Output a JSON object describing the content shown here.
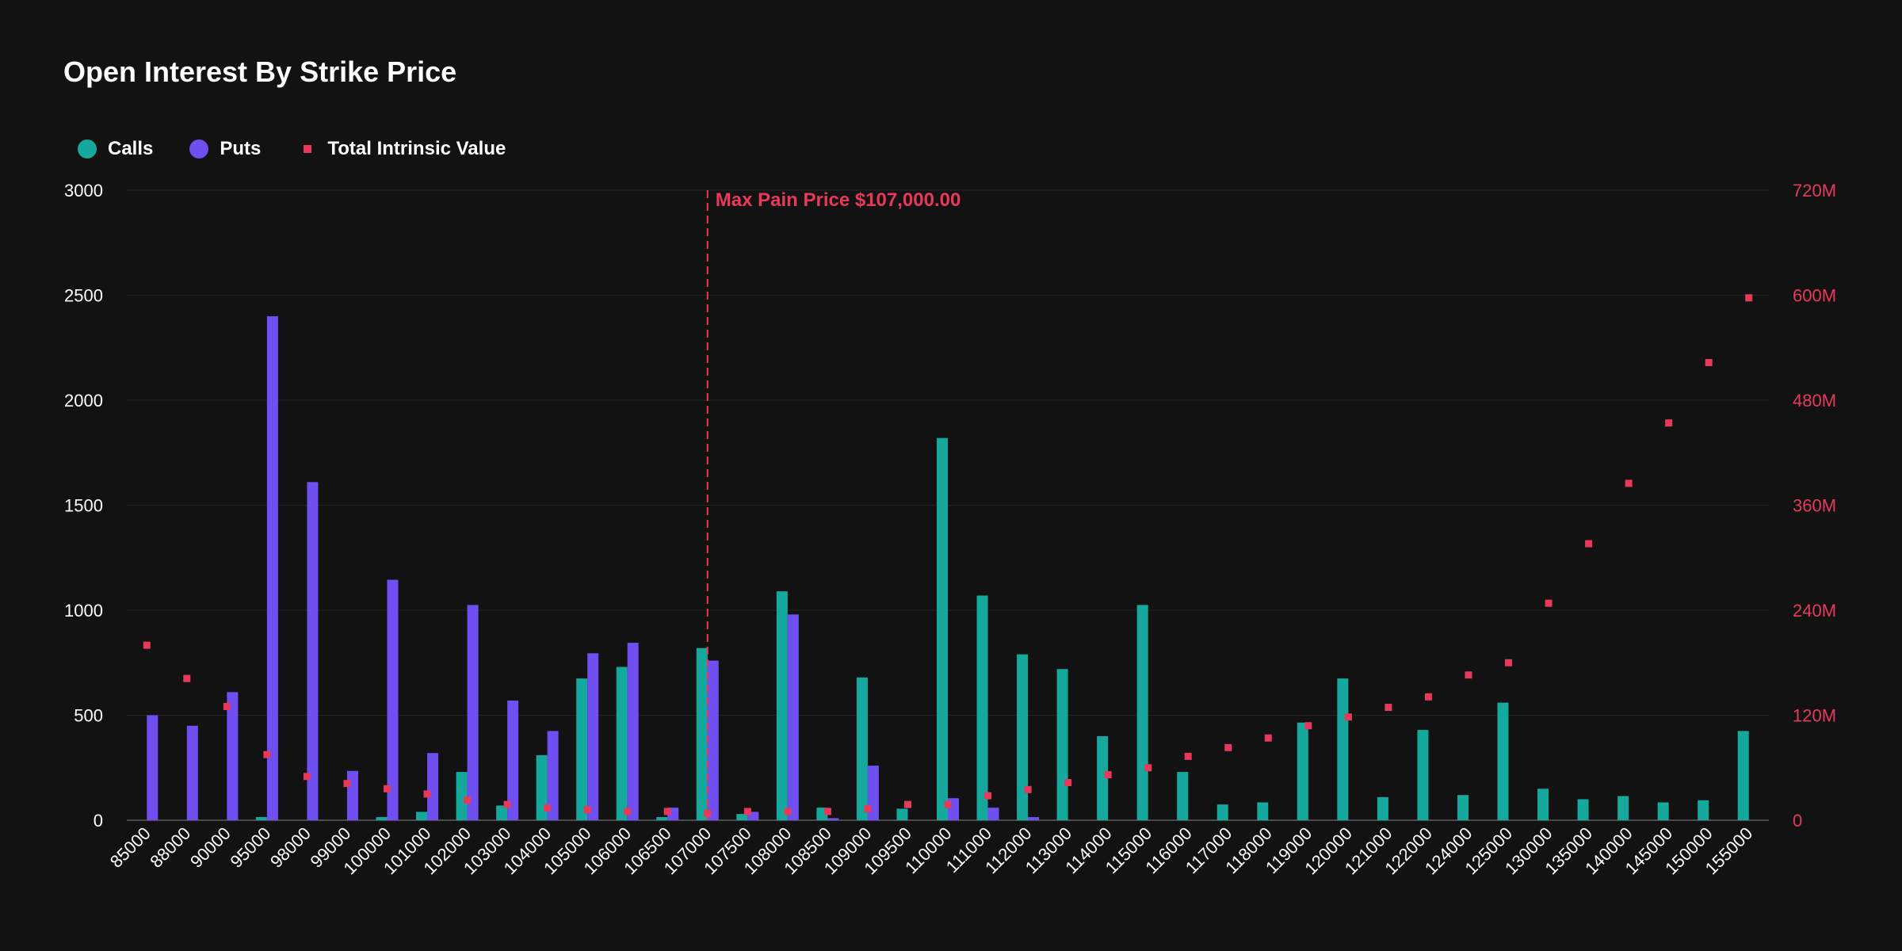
{
  "title": "Open Interest By Strike Price",
  "colors": {
    "background": "#121212",
    "calls": "#14a99c",
    "puts": "#6f4ff0",
    "intrinsic": "#e8395a",
    "grid": "#232323",
    "axis_text": "#ffffff",
    "right_axis_text": "#e8395a"
  },
  "legend": [
    {
      "label": "Calls",
      "shape": "circle",
      "color": "#14a99c"
    },
    {
      "label": "Puts",
      "shape": "circle",
      "color": "#6f4ff0"
    },
    {
      "label": "Total Intrinsic Value",
      "shape": "square",
      "color": "#e8395a"
    }
  ],
  "chart_data": {
    "type": "bar",
    "title": "Open Interest By Strike Price",
    "categories": [
      "85000",
      "88000",
      "90000",
      "95000",
      "98000",
      "99000",
      "100000",
      "101000",
      "102000",
      "103000",
      "104000",
      "105000",
      "106000",
      "106500",
      "107000",
      "107500",
      "108000",
      "108500",
      "109000",
      "109500",
      "110000",
      "111000",
      "112000",
      "113000",
      "114000",
      "115000",
      "116000",
      "117000",
      "118000",
      "119000",
      "120000",
      "121000",
      "122000",
      "124000",
      "125000",
      "130000",
      "135000",
      "140000",
      "145000",
      "150000",
      "155000"
    ],
    "series": [
      {
        "name": "Calls",
        "type": "bar",
        "axis": "left",
        "values": [
          0,
          0,
          0,
          15,
          0,
          0,
          15,
          40,
          230,
          70,
          310,
          675,
          730,
          15,
          820,
          30,
          1090,
          60,
          680,
          55,
          1820,
          1070,
          790,
          720,
          400,
          1025,
          230,
          75,
          85,
          465,
          675,
          110,
          430,
          120,
          560,
          150,
          100,
          115,
          85,
          95,
          425
        ]
      },
      {
        "name": "Puts",
        "type": "bar",
        "axis": "left",
        "values": [
          500,
          450,
          610,
          2400,
          1610,
          235,
          1145,
          320,
          1025,
          570,
          425,
          795,
          845,
          60,
          760,
          40,
          980,
          10,
          260,
          0,
          105,
          60,
          15,
          0,
          0,
          0,
          0,
          0,
          0,
          0,
          0,
          0,
          0,
          0,
          0,
          0,
          0,
          0,
          0,
          0,
          0
        ]
      },
      {
        "name": "Total Intrinsic Value",
        "type": "scatter",
        "axis": "right",
        "values": [
          200,
          162,
          130,
          75,
          50,
          42,
          36,
          30,
          23,
          18,
          14,
          12,
          10,
          10,
          8,
          10,
          10,
          10,
          13,
          18,
          18,
          28,
          35,
          43,
          52,
          60,
          73,
          83,
          94,
          108,
          118,
          129,
          141,
          166,
          180,
          248,
          316,
          385,
          454,
          523,
          597
        ]
      }
    ],
    "y_left": {
      "min": 0,
      "max": 3000,
      "ticks": [
        0,
        500,
        1000,
        1500,
        2000,
        2500,
        3000
      ]
    },
    "y_right": {
      "min": 0,
      "max": 720,
      "ticks": [
        0,
        120,
        240,
        360,
        480,
        600,
        720
      ],
      "tick_labels": [
        "0",
        "120M",
        "240M",
        "360M",
        "480M",
        "600M",
        "720M"
      ]
    },
    "grid": true,
    "legend_position": "top-left",
    "annotation": {
      "label": "Max Pain Price $107,000.00",
      "category": "107000",
      "style": "dashed-vertical-line"
    }
  }
}
